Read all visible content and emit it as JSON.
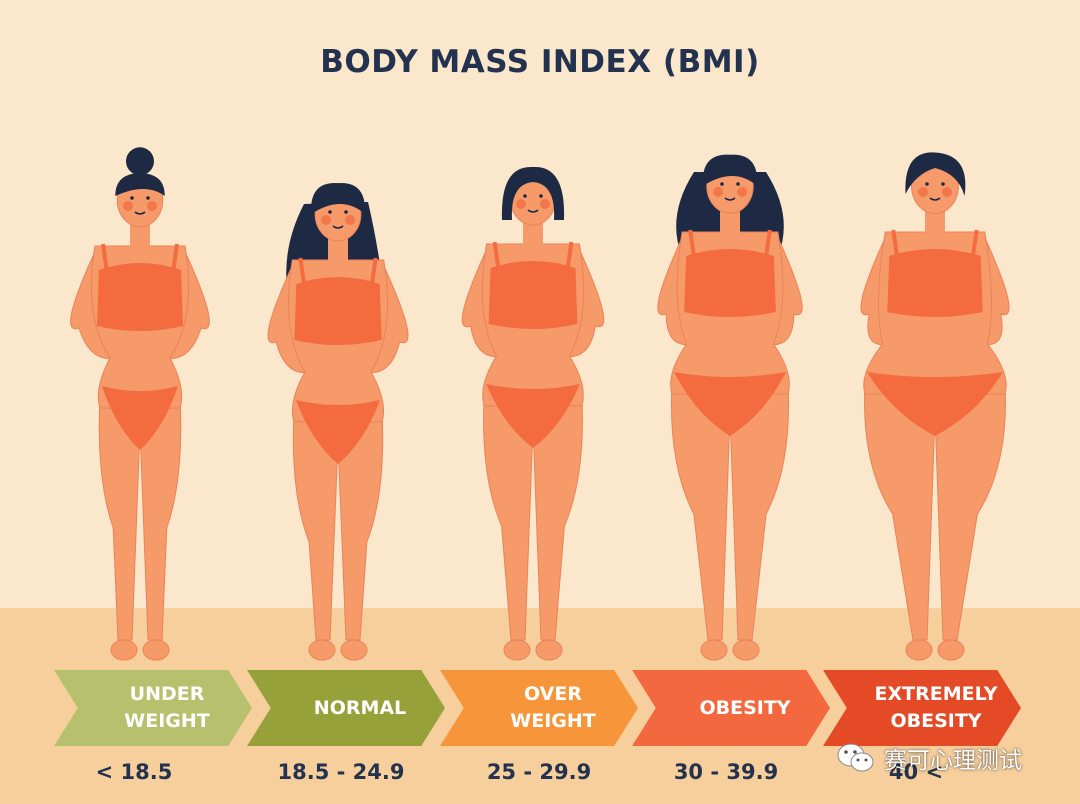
{
  "title": "BODY MASS INDEX (BMI)",
  "colors": {
    "background": "#fbe7cc",
    "floor": "#f6cf9c",
    "title": "#23324f",
    "skin": "#f79a6a",
    "skin_shadow": "#e9825a",
    "bikini": "#f36b3f",
    "hair": "#1e2a44",
    "blush": "#f0683f"
  },
  "categories": [
    {
      "label_line1": "UNDER",
      "label_line2": "WEIGHT",
      "range": "< 18.5",
      "color": "#b7c16d"
    },
    {
      "label_line1": "NORMAL",
      "label_line2": "",
      "range": "18.5 - 24.9",
      "color": "#96a13a"
    },
    {
      "label_line1": "OVER",
      "label_line2": "WEIGHT",
      "range": "25 - 29.9",
      "color": "#f7953a"
    },
    {
      "label_line1": "OBESITY",
      "label_line2": "",
      "range": "30 - 39.9",
      "color": "#f3683f"
    },
    {
      "label_line1": "EXTREMELY",
      "label_line2": "OBESITY",
      "range": "40 <",
      "color": "#e44a25"
    }
  ],
  "figures": [
    {
      "name": "underweight-figure",
      "hair": "bun",
      "build": 1.0
    },
    {
      "name": "normal-figure",
      "hair": "long",
      "build": 1.1
    },
    {
      "name": "overweight-figure",
      "hair": "bob",
      "build": 1.22
    },
    {
      "name": "obesity-figure",
      "hair": "wavy",
      "build": 1.45
    },
    {
      "name": "extremely-obese-figure",
      "hair": "short",
      "build": 1.75
    }
  ],
  "watermark": {
    "text": "赛可心理测试",
    "icon": "wechat-icon"
  }
}
